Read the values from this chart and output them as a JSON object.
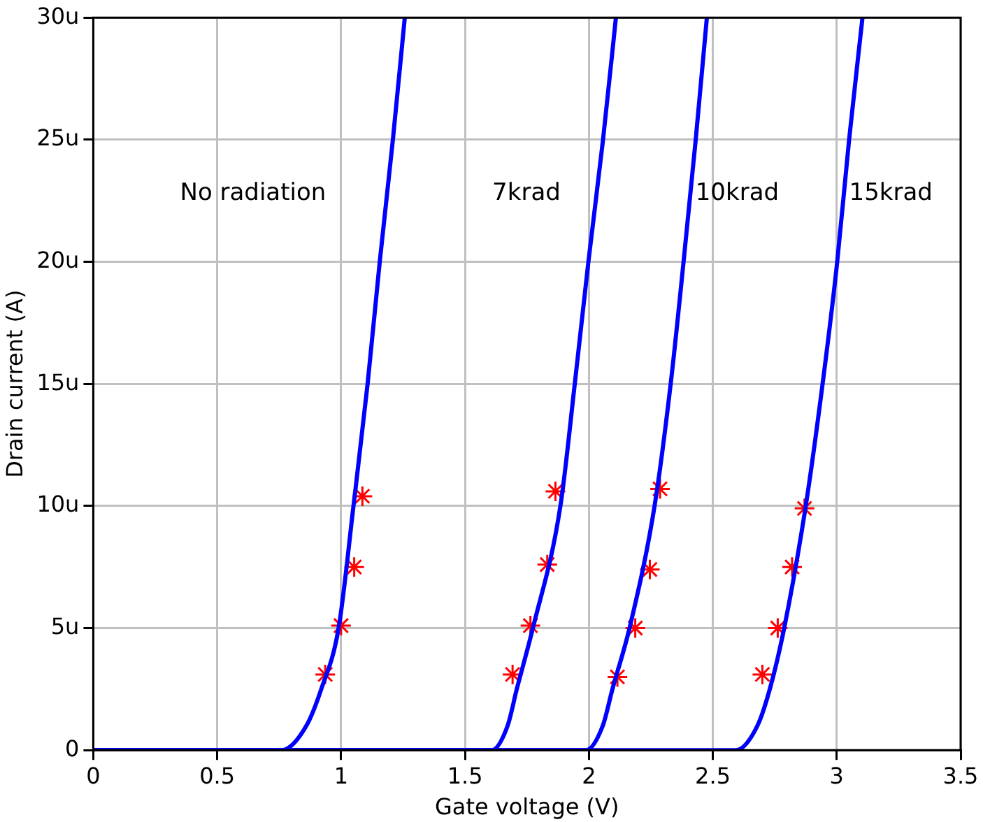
{
  "chart_data": {
    "type": "line",
    "xlabel": "Gate voltage (V)",
    "ylabel": "Drain current (A)",
    "xlim": [
      0,
      3.5
    ],
    "xticks": [
      0,
      0.5,
      1,
      1.5,
      2,
      2.5,
      3,
      3.5
    ],
    "ylim": [
      0,
      30
    ],
    "yticks": [
      0,
      {
        "value": 5,
        "label": "5u"
      },
      {
        "value": 10,
        "label": "10u"
      },
      {
        "value": 15,
        "label": "15u"
      },
      {
        "value": 20,
        "label": "20u"
      },
      {
        "value": 25,
        "label": "25u"
      },
      {
        "value": 30,
        "label": "30u"
      }
    ],
    "grid": true,
    "legend": false,
    "marker": "none",
    "line_style": "solid",
    "series": [
      {
        "type": "line",
        "name": "No radiation",
        "color": "#0000ff",
        "x": [
          0,
          0.76,
          0.86,
          0.92,
          0.99,
          1.05,
          1.107,
          1.156,
          1.209,
          1.257
        ],
        "values": [
          0,
          0,
          1,
          2.5,
          5,
          10,
          15,
          20,
          25,
          30
        ]
      },
      {
        "type": "line",
        "name": "7krad",
        "color": "#0000ff",
        "x": [
          0,
          1.608,
          1.672,
          1.709,
          1.774,
          1.885,
          1.943,
          1.998,
          2.057,
          2.109
        ],
        "values": [
          0,
          0,
          1,
          2.5,
          5,
          10,
          15,
          20,
          25,
          30
        ]
      },
      {
        "type": "line",
        "name": "10krad",
        "color": "#0000ff",
        "x": [
          0,
          1.988,
          2.056,
          2.095,
          2.164,
          2.265,
          2.33,
          2.382,
          2.431,
          2.476
        ],
        "values": [
          0,
          0,
          1,
          2.5,
          5,
          10,
          15,
          20,
          25,
          30
        ]
      },
      {
        "type": "line",
        "name": "15krad",
        "color": "#0000ff",
        "x": [
          0,
          2.593,
          2.68,
          2.73,
          2.788,
          2.875,
          2.943,
          3.002,
          3.05,
          3.104
        ],
        "values": [
          0,
          0,
          1,
          2.5,
          5,
          10,
          15,
          20,
          25,
          30
        ]
      },
      {
        "type": "scatter",
        "color": "#ff0000",
        "marker": "cross",
        "x": [
          0.936,
          1.0,
          1.053,
          1.086,
          1.692,
          1.764,
          1.832,
          1.865,
          2.115,
          2.187,
          2.246,
          2.287,
          2.7,
          2.762,
          2.82,
          2.87
        ],
        "values": [
          3.1,
          5.1,
          7.5,
          10.4,
          3.1,
          5.1,
          7.6,
          10.6,
          3.0,
          5.0,
          7.4,
          10.7,
          3.1,
          5.0,
          7.5,
          9.9
        ]
      }
    ]
  }
}
